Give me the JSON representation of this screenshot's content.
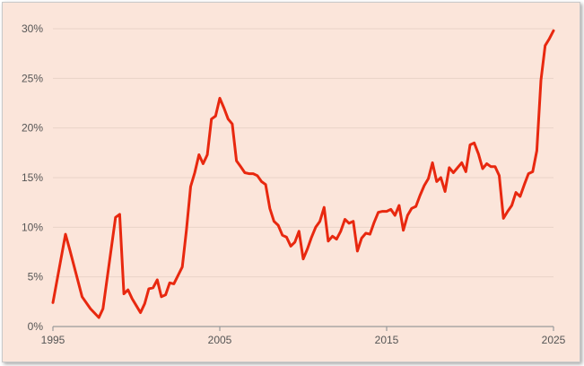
{
  "chart_data": {
    "type": "line",
    "title": "",
    "xlabel": "",
    "ylabel": "",
    "xlim": [
      1995,
      2025
    ],
    "ylim": [
      0,
      30
    ],
    "x_ticks": [
      "1995",
      "2005",
      "2015",
      "2025"
    ],
    "y_ticks": [
      "0%",
      "5%",
      "10%",
      "15%",
      "20%",
      "25%",
      "30%"
    ],
    "grid": true,
    "legend": "none",
    "colors": {
      "line": "#e8280f",
      "background": "#fbe5da",
      "grid": "#e9d4c8",
      "axis": "#9a9a9a"
    },
    "series": [
      {
        "x": [
          1995.0,
          1995.75,
          1996.0,
          1996.75,
          1997.25,
          1997.75,
          1998.0,
          1998.75,
          1999.0,
          1999.25,
          1999.5,
          1999.75,
          2000.0,
          2000.25,
          2000.5,
          2000.75,
          2001.0,
          2001.25,
          2001.5,
          2001.75,
          2002.0,
          2002.25,
          2002.75,
          2003.0,
          2003.25,
          2003.5,
          2003.75,
          2004.0,
          2004.25,
          2004.5,
          2004.75,
          2005.0,
          2005.25,
          2005.5,
          2005.75,
          2006.0,
          2006.25,
          2006.5,
          2006.75,
          2007.0,
          2007.25,
          2007.5,
          2007.75,
          2008.0,
          2008.25,
          2008.5,
          2008.75,
          2009.0,
          2009.25,
          2009.5,
          2009.75,
          2010.0,
          2010.25,
          2010.5,
          2010.75,
          2011.0,
          2011.25,
          2011.5,
          2011.75,
          2012.0,
          2012.25,
          2012.5,
          2012.75,
          2013.0,
          2013.25,
          2013.5,
          2013.75,
          2014.0,
          2014.25,
          2014.5,
          2014.75,
          2015.0,
          2015.25,
          2015.5,
          2015.75,
          2016.0,
          2016.25,
          2016.5,
          2016.75,
          2017.0,
          2017.25,
          2017.5,
          2017.75,
          2018.0,
          2018.25,
          2018.5,
          2018.75,
          2019.0,
          2019.25,
          2019.5,
          2019.75,
          2020.0,
          2020.25,
          2020.5,
          2020.75,
          2021.0,
          2021.25,
          2021.5,
          2021.75,
          2022.0,
          2022.25,
          2022.5,
          2022.75,
          2023.0,
          2023.25,
          2023.5,
          2023.75,
          2024.0,
          2024.25,
          2024.5,
          2024.75,
          2025.0
        ],
        "values": [
          2.4,
          9.3,
          7.8,
          3.0,
          1.8,
          0.9,
          1.8,
          11.0,
          11.3,
          3.3,
          3.7,
          2.8,
          2.1,
          1.4,
          2.3,
          3.8,
          3.9,
          4.7,
          3.0,
          3.2,
          4.4,
          4.3,
          6.0,
          9.7,
          14.1,
          15.5,
          17.3,
          16.4,
          17.3,
          20.9,
          21.2,
          23.0,
          22.0,
          20.9,
          20.4,
          16.7,
          16.1,
          15.5,
          15.4,
          15.4,
          15.2,
          14.6,
          14.3,
          11.9,
          10.6,
          10.2,
          9.2,
          9.0,
          8.1,
          8.5,
          9.6,
          6.8,
          7.8,
          9.0,
          10.0,
          10.6,
          12.0,
          8.6,
          9.1,
          8.8,
          9.6,
          10.8,
          10.4,
          10.6,
          7.6,
          8.9,
          9.4,
          9.3,
          10.5,
          11.5,
          11.6,
          11.6,
          11.8,
          11.2,
          12.2,
          9.7,
          11.2,
          11.9,
          12.1,
          13.2,
          14.2,
          14.9,
          16.5,
          14.6,
          15.0,
          13.6,
          16.0,
          15.5,
          16.0,
          16.5,
          15.6,
          18.3,
          18.5,
          17.4,
          15.9,
          16.4,
          16.1,
          16.1,
          15.2,
          10.9,
          11.6,
          12.2,
          13.5,
          13.1,
          14.3,
          15.4,
          15.6,
          17.7,
          24.8,
          28.3,
          29.0,
          29.8
        ]
      }
    ]
  }
}
